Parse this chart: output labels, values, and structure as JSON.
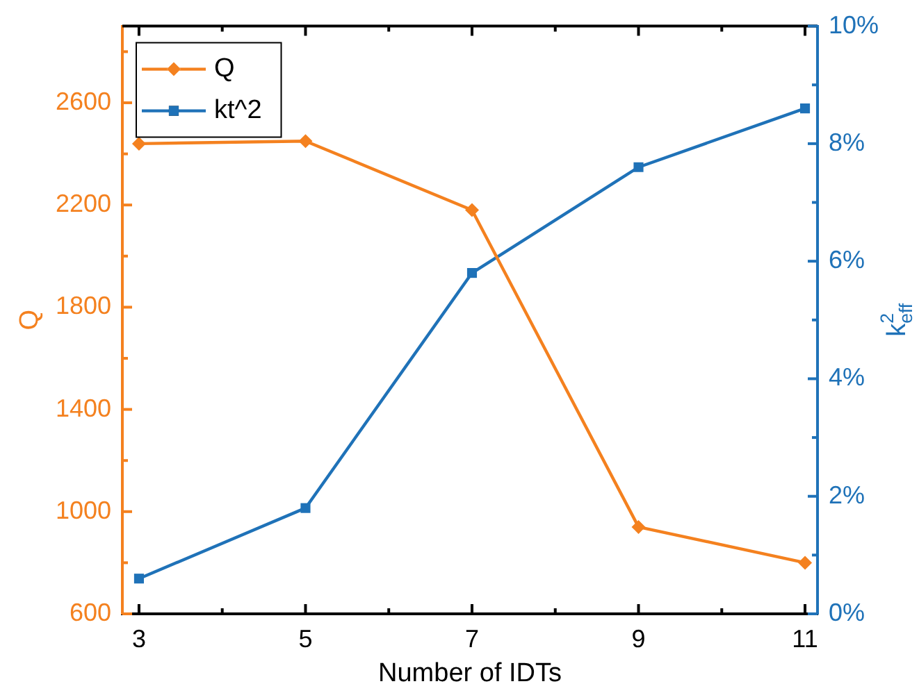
{
  "chart_data": {
    "type": "line",
    "xlabel": "Number of IDTs",
    "ylabel": "Q",
    "y2label": "k$^{2}$$_{eff}$",
    "x": [
      3,
      5,
      7,
      9,
      11
    ],
    "series": [
      {
        "name": "Q",
        "color": "#f4811f",
        "marker": "diamond",
        "values": [
          2440,
          2450,
          2180,
          940,
          800
        ]
      },
      {
        "name": "kt^2",
        "color": "#1f72b8",
        "marker": "square",
        "axis": "y2",
        "values": [
          0.6,
          1.8,
          5.8,
          7.6,
          8.6
        ]
      }
    ],
    "xlim": [
      2.8,
      11.15
    ],
    "xticks": [
      3,
      {
        "value": 4,
        "label": null
      },
      5,
      {
        "value": 6,
        "label": null
      },
      7,
      {
        "value": 8,
        "label": null
      },
      9,
      {
        "value": 10,
        "label": null
      },
      11
    ],
    "ylim": [
      600,
      2900
    ],
    "yticks": [
      600,
      {
        "value": 800,
        "label": null
      },
      1000,
      {
        "value": 1200,
        "label": null
      },
      1400,
      {
        "value": 1600,
        "label": null
      },
      1800,
      {
        "value": 2000,
        "label": null
      },
      2200,
      {
        "value": 2400,
        "label": null
      },
      2600,
      {
        "value": 2800,
        "label": null
      }
    ],
    "y2lim": [
      0,
      10
    ],
    "y2ticks": [
      {
        "value": 0,
        "label": "0%"
      },
      {
        "value": 1,
        "label": null
      },
      {
        "value": 2,
        "label": "2%"
      },
      {
        "value": 3,
        "label": null
      },
      {
        "value": 4,
        "label": "4%"
      },
      {
        "value": 5,
        "label": null
      },
      {
        "value": 6,
        "label": "6%"
      },
      {
        "value": 7,
        "label": null
      },
      {
        "value": 8,
        "label": "8%"
      },
      {
        "value": 9,
        "label": null
      },
      {
        "value": 10,
        "label": "10%"
      }
    ],
    "grid": false,
    "legend": "top left",
    "line_style": "solid"
  }
}
